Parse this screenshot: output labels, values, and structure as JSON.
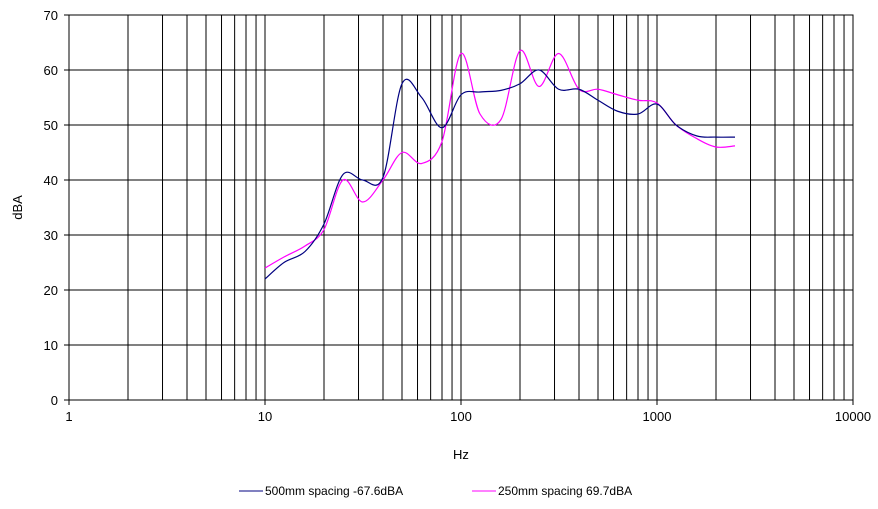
{
  "chart_data": {
    "type": "line",
    "title": "",
    "xlabel": "Hz",
    "ylabel": "dBA",
    "xscale": "log",
    "xlim": [
      1,
      10000
    ],
    "ylim": [
      0,
      70
    ],
    "x_tick_labels": [
      "1",
      "10",
      "100",
      "1000",
      "10000"
    ],
    "y_tick_labels": [
      "0",
      "10",
      "20",
      "30",
      "40",
      "50",
      "60",
      "70"
    ],
    "grid": true,
    "legend_position": "bottom",
    "series": [
      {
        "name": "500mm spacing -67.6dBA",
        "color": "#000080",
        "x": [
          10,
          12.5,
          16,
          20,
          25,
          31.5,
          40,
          50,
          63,
          80,
          100,
          125,
          160,
          200,
          250,
          315,
          400,
          500,
          630,
          800,
          1000,
          1250,
          1600,
          2000,
          2500
        ],
        "y": [
          22,
          25,
          27,
          32,
          41,
          40,
          40.5,
          57.5,
          55,
          49.5,
          55.5,
          56,
          56.3,
          57.5,
          60,
          56.5,
          56.5,
          54.5,
          52.5,
          52,
          53.8,
          50,
          48,
          47.8,
          47.8
        ]
      },
      {
        "name": "250mm spacing 69.7dBA",
        "color": "#ff00ff",
        "x": [
          10,
          12.5,
          16,
          20,
          25,
          31.5,
          40,
          50,
          63,
          80,
          100,
          125,
          160,
          200,
          250,
          315,
          400,
          500,
          630,
          800,
          1000,
          1250,
          1600,
          2000,
          2500
        ],
        "y": [
          24,
          26,
          28,
          31,
          40,
          36,
          40,
          45,
          43,
          47,
          63,
          52,
          51,
          63.5,
          57,
          63,
          56.5,
          56.5,
          55.5,
          54.5,
          54,
          50,
          47.5,
          46,
          46.2
        ]
      }
    ]
  }
}
